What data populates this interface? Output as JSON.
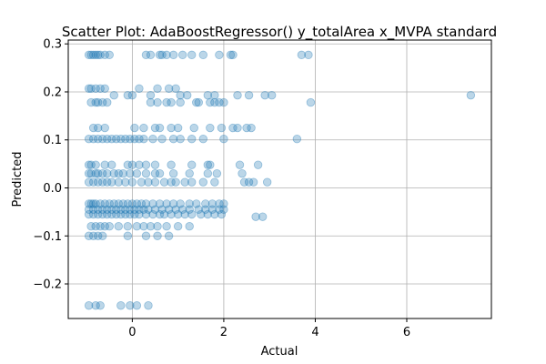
{
  "chart_data": {
    "type": "scatter",
    "title": "Scatter Plot: AdaBoostRegressor() y_totalArea x_MVPA standard",
    "xlabel": "Actual",
    "ylabel": "Predicted",
    "xlim": [
      -1.4,
      7.85
    ],
    "ylim": [
      -0.272,
      0.308
    ],
    "xticks": [
      0,
      2,
      4,
      6
    ],
    "xtick_labels": [
      "0",
      "2",
      "4",
      "6"
    ],
    "yticks": [
      -0.2,
      -0.1,
      0.0,
      0.1,
      0.2,
      0.3
    ],
    "ytick_labels": [
      "−0.2",
      "−0.1",
      "0.0",
      "0.1",
      "0.2",
      "0.3"
    ],
    "grid": true,
    "point_color": "#1f77b4",
    "point_alpha": 0.3,
    "series": [
      {
        "x": [
          -0.95,
          -0.9,
          -0.85,
          -0.8,
          -0.75,
          -0.7,
          -0.6,
          -0.5,
          0.3,
          0.4,
          0.6,
          0.65,
          0.75,
          0.9,
          1.1,
          1.3,
          1.55,
          1.9,
          2.15,
          2.2,
          3.7,
          3.85,
          -0.95,
          -0.9,
          -0.8,
          -0.7,
          -0.6,
          -0.4,
          -0.1,
          0.0,
          0.15,
          0.4,
          0.55,
          0.8,
          0.95,
          1.05,
          1.2,
          1.65,
          1.8,
          2.3,
          2.55,
          2.9,
          3.05,
          3.9,
          7.4,
          -0.9,
          -0.8,
          -0.75,
          -0.65,
          -0.55,
          0.4,
          0.55,
          0.75,
          0.85,
          1.05,
          1.4,
          1.45,
          1.7,
          1.8,
          1.9,
          2.0,
          2.6,
          -0.85,
          -0.75,
          -0.6,
          0.05,
          0.25,
          0.5,
          0.6,
          0.85,
          1.0,
          1.35,
          1.7,
          1.95,
          2.2,
          2.3,
          2.5,
          -0.95,
          -0.85,
          -0.75,
          -0.65,
          -0.55,
          -0.45,
          -0.35,
          -0.25,
          -0.15,
          -0.05,
          0.05,
          0.15,
          0.25,
          0.45,
          0.65,
          0.9,
          1.05,
          1.3,
          1.55,
          2.0,
          3.6,
          -0.95,
          -0.9,
          -0.8,
          -0.6,
          -0.45,
          -0.1,
          0.0,
          0.15,
          0.3,
          0.5,
          0.85,
          1.3,
          1.65,
          1.7,
          2.35,
          2.75,
          -0.95,
          -0.9,
          -0.8,
          -0.75,
          -0.65,
          -0.55,
          -0.4,
          -0.3,
          -0.2,
          -0.05,
          0.1,
          0.3,
          0.5,
          0.6,
          0.9,
          1.25,
          1.65,
          1.85,
          2.4,
          -0.95,
          -0.85,
          -0.75,
          -0.65,
          -0.55,
          -0.45,
          -0.3,
          -0.15,
          0.0,
          0.2,
          0.35,
          0.5,
          0.7,
          0.85,
          0.95,
          1.15,
          1.3,
          1.55,
          1.8,
          2.45,
          2.55,
          2.65,
          2.95,
          -0.95,
          -0.9,
          -0.85,
          -0.8,
          -0.7,
          -0.6,
          -0.5,
          -0.4,
          -0.3,
          -0.2,
          -0.1,
          0.0,
          0.1,
          0.2,
          0.3,
          0.45,
          0.6,
          0.75,
          0.9,
          1.05,
          1.25,
          1.4,
          1.6,
          1.75,
          1.9,
          2.0,
          -0.95,
          -0.85,
          -0.75,
          -0.65,
          -0.55,
          -0.45,
          -0.35,
          -0.25,
          -0.15,
          -0.05,
          0.05,
          0.15,
          0.3,
          0.45,
          0.6,
          0.7,
          0.85,
          1.0,
          1.15,
          1.3,
          1.5,
          1.65,
          1.8,
          1.95,
          -0.95,
          -0.85,
          -0.75,
          -0.65,
          -0.55,
          -0.45,
          -0.35,
          -0.25,
          -0.15,
          -0.05,
          0.05,
          0.15,
          0.25,
          0.35,
          0.5,
          0.65,
          0.8,
          0.95,
          1.1,
          1.25,
          1.45,
          1.6,
          1.75,
          1.9,
          2.0,
          2.7,
          2.85,
          -0.9,
          -0.8,
          -0.7,
          -0.6,
          -0.5,
          -0.3,
          -0.1,
          0.1,
          0.25,
          0.4,
          0.55,
          0.75,
          1.0,
          1.25,
          -0.95,
          -0.85,
          -0.75,
          -0.65,
          -0.1,
          0.3,
          0.55,
          0.8,
          -0.95,
          -0.8,
          -0.7,
          -0.25,
          -0.05,
          0.1,
          0.35
        ],
        "y": [
          0.277,
          0.277,
          0.277,
          0.277,
          0.277,
          0.277,
          0.277,
          0.277,
          0.277,
          0.277,
          0.277,
          0.277,
          0.277,
          0.277,
          0.277,
          0.277,
          0.277,
          0.277,
          0.277,
          0.277,
          0.277,
          0.277,
          0.207,
          0.207,
          0.207,
          0.207,
          0.207,
          0.193,
          0.193,
          0.193,
          0.207,
          0.193,
          0.207,
          0.207,
          0.207,
          0.193,
          0.193,
          0.193,
          0.193,
          0.193,
          0.193,
          0.193,
          0.193,
          0.178,
          0.193,
          0.178,
          0.178,
          0.178,
          0.178,
          0.178,
          0.178,
          0.178,
          0.178,
          0.178,
          0.178,
          0.178,
          0.178,
          0.178,
          0.178,
          0.178,
          0.178,
          0.125,
          0.125,
          0.125,
          0.125,
          0.125,
          0.125,
          0.125,
          0.125,
          0.125,
          0.125,
          0.125,
          0.125,
          0.125,
          0.125,
          0.125,
          0.125,
          0.102,
          0.102,
          0.102,
          0.102,
          0.102,
          0.102,
          0.102,
          0.102,
          0.102,
          0.102,
          0.102,
          0.102,
          0.102,
          0.102,
          0.102,
          0.102,
          0.102,
          0.102,
          0.102,
          0.102,
          0.102,
          0.048,
          0.048,
          0.048,
          0.048,
          0.048,
          0.048,
          0.048,
          0.048,
          0.048,
          0.048,
          0.048,
          0.048,
          0.048,
          0.048,
          0.048,
          0.048,
          0.03,
          0.03,
          0.03,
          0.03,
          0.03,
          0.03,
          0.03,
          0.03,
          0.03,
          0.03,
          0.03,
          0.03,
          0.03,
          0.03,
          0.03,
          0.03,
          0.03,
          0.03,
          0.03,
          0.012,
          0.012,
          0.012,
          0.012,
          0.012,
          0.012,
          0.012,
          0.012,
          0.012,
          0.012,
          0.012,
          0.012,
          0.012,
          0.012,
          0.012,
          0.012,
          0.012,
          0.012,
          0.012,
          0.012,
          0.012,
          0.012,
          0.012,
          -0.033,
          -0.033,
          -0.033,
          -0.033,
          -0.033,
          -0.033,
          -0.033,
          -0.033,
          -0.033,
          -0.033,
          -0.033,
          -0.033,
          -0.033,
          -0.033,
          -0.033,
          -0.033,
          -0.033,
          -0.033,
          -0.033,
          -0.033,
          -0.033,
          -0.033,
          -0.033,
          -0.033,
          -0.033,
          -0.033,
          -0.055,
          -0.055,
          -0.055,
          -0.055,
          -0.055,
          -0.055,
          -0.055,
          -0.055,
          -0.055,
          -0.055,
          -0.055,
          -0.055,
          -0.055,
          -0.055,
          -0.055,
          -0.055,
          -0.055,
          -0.055,
          -0.055,
          -0.055,
          -0.055,
          -0.055,
          -0.055,
          -0.055,
          -0.045,
          -0.045,
          -0.045,
          -0.045,
          -0.045,
          -0.045,
          -0.045,
          -0.045,
          -0.045,
          -0.045,
          -0.045,
          -0.045,
          -0.045,
          -0.045,
          -0.045,
          -0.045,
          -0.045,
          -0.045,
          -0.045,
          -0.045,
          -0.045,
          -0.045,
          -0.045,
          -0.045,
          -0.045,
          -0.06,
          -0.06,
          -0.08,
          -0.08,
          -0.08,
          -0.08,
          -0.08,
          -0.08,
          -0.08,
          -0.08,
          -0.08,
          -0.08,
          -0.08,
          -0.08,
          -0.08,
          -0.08,
          -0.1,
          -0.1,
          -0.1,
          -0.1,
          -0.1,
          -0.1,
          -0.1,
          -0.1,
          -0.245,
          -0.245,
          -0.245,
          -0.245,
          -0.245,
          -0.245,
          -0.245
        ]
      }
    ]
  }
}
